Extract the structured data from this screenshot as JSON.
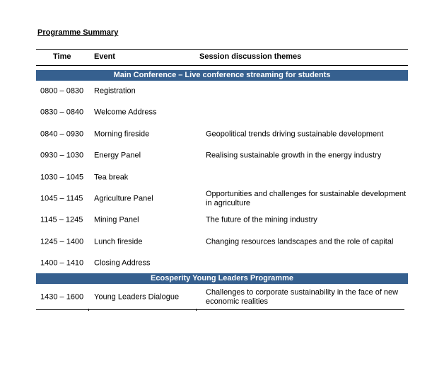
{
  "title": "Programme Summary",
  "headers": {
    "time": "Time",
    "event": "Event",
    "themes": "Session discussion themes"
  },
  "sections": [
    {
      "title": "Main Conference – Live conference streaming for students",
      "rows": [
        {
          "time": "0800 – 0830",
          "event": "Registration",
          "theme": ""
        },
        {
          "time": "0830 – 0840",
          "event": "Welcome Address",
          "theme": ""
        },
        {
          "time": "0840 – 0930",
          "event": "Morning fireside",
          "theme": "Geopolitical trends driving sustainable development"
        },
        {
          "time": "0930 – 1030",
          "event": "Energy Panel",
          "theme": "Realising sustainable growth in the energy industry"
        },
        {
          "time": "1030 – 1045",
          "event": "Tea break",
          "theme": ""
        },
        {
          "time": "1045 – 1145",
          "event": "Agriculture Panel",
          "theme": "Opportunities and challenges for sustainable development in agriculture"
        },
        {
          "time": "1145 – 1245",
          "event": "Mining Panel",
          "theme": "The future of the mining industry"
        },
        {
          "time": "1245 – 1400",
          "event": "Lunch fireside",
          "theme": "Changing resources landscapes and the role of capital"
        },
        {
          "time": "1400 – 1410",
          "event": "Closing Address",
          "theme": ""
        }
      ]
    },
    {
      "title": "Ecosperity Young Leaders Programme",
      "rows": [
        {
          "time": "1430 – 1600",
          "event": "Young Leaders Dialogue",
          "theme": "Challenges to corporate sustainability in the face of new economic realities"
        }
      ]
    }
  ],
  "colors": {
    "band": "#36608f"
  }
}
